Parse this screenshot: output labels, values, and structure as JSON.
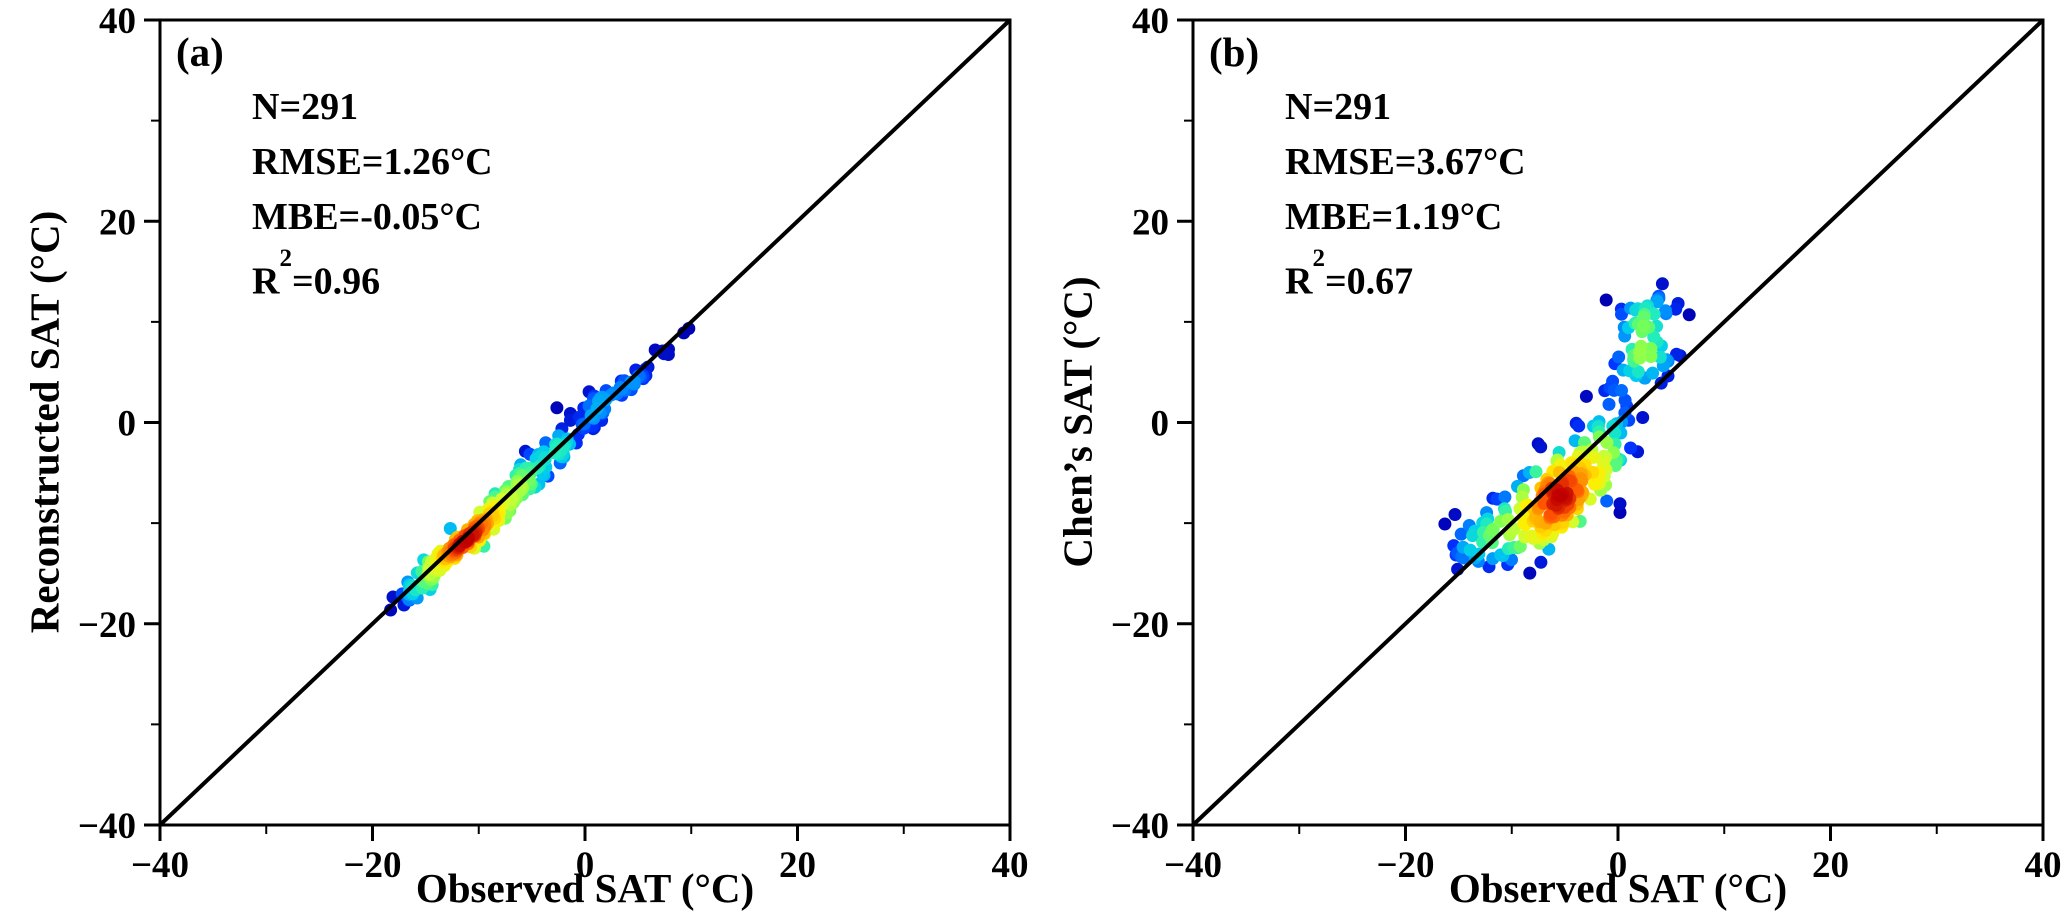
{
  "figure": {
    "background": "#ffffff",
    "axis_color": "#000000",
    "identity_line_color": "#000000"
  },
  "colormap": [
    "#0000b3",
    "#0033ff",
    "#0088ff",
    "#00ccee",
    "#22eebb",
    "#77ff55",
    "#ccff33",
    "#ffee00",
    "#ffaa00",
    "#ff5500",
    "#c00000"
  ],
  "chart_data": [
    {
      "type": "scatter",
      "panel_label": "(a)",
      "xlabel": "Observed SAT (°C)",
      "ylabel": "Reconstructed SAT (°C)",
      "xlim": [
        -40,
        40
      ],
      "ylim": [
        -40,
        40
      ],
      "ticks": [
        -40,
        -20,
        0,
        20,
        40
      ],
      "tick_labels": [
        "−40",
        "−20",
        "0",
        "20",
        "40"
      ],
      "minor_tick_step": 10,
      "identity_line": true,
      "n_points": 291,
      "stats": {
        "n": "N=291",
        "rmse": "RMSE=1.26°C",
        "mbe": "MBE=-0.05°C",
        "r2_base": "R",
        "r2_sup": "2",
        "r2_rest": "=0.96"
      },
      "point_cloud": {
        "seed": 7,
        "density_bandwidth": 1.2,
        "color_by": "local-density",
        "clusters": [
          {
            "cx": -10,
            "cy": -10.4,
            "sx": 3.1,
            "sy": 3.1,
            "rho": 0.97,
            "weight": 0.58
          },
          {
            "cx": -2,
            "cy": -1.6,
            "sx": 2.9,
            "sy": 2.9,
            "rho": 0.92,
            "weight": 0.25
          },
          {
            "cx": 5.5,
            "cy": 5.0,
            "sx": 1.9,
            "sy": 1.9,
            "rho": 0.97,
            "weight": 0.09
          },
          {
            "cx": -15,
            "cy": -15.6,
            "sx": 1.5,
            "sy": 1.8,
            "rho": 0.92,
            "weight": 0.08
          }
        ]
      }
    },
    {
      "type": "scatter",
      "panel_label": "(b)",
      "xlabel": "Observed SAT (°C)",
      "ylabel": "Chen’s SAT (°C)",
      "xlim": [
        -40,
        40
      ],
      "ylim": [
        -40,
        40
      ],
      "ticks": [
        -40,
        -20,
        0,
        20,
        40
      ],
      "tick_labels": [
        "−40",
        "−20",
        "0",
        "20",
        "40"
      ],
      "minor_tick_step": 10,
      "identity_line": true,
      "n_points": 291,
      "stats": {
        "n": "N=291",
        "rmse": "RMSE=3.67°C",
        "mbe": "MBE=1.19°C",
        "r2_base": "R",
        "r2_sup": "2",
        "r2_rest": "=0.67"
      },
      "point_cloud": {
        "seed": 13,
        "density_bandwidth": 1.6,
        "color_by": "local-density",
        "clusters": [
          {
            "cx": -7,
            "cy": -8.8,
            "sx": 2.8,
            "sy": 2.4,
            "rho": 0.55,
            "weight": 0.42
          },
          {
            "cx": -2.5,
            "cy": -3.2,
            "sx": 2.6,
            "sy": 2.6,
            "rho": 0.5,
            "weight": 0.22
          },
          {
            "cx": 1.5,
            "cy": 5.8,
            "sx": 2.4,
            "sy": 2.6,
            "rho": 0.45,
            "weight": 0.16
          },
          {
            "cx": -13.5,
            "cy": -11.6,
            "sx": 1.8,
            "sy": 1.8,
            "rho": 0.5,
            "weight": 0.12
          },
          {
            "cx": 3.5,
            "cy": 11.5,
            "sx": 1.8,
            "sy": 1.1,
            "rho": 0.2,
            "weight": 0.08
          }
        ]
      }
    }
  ]
}
